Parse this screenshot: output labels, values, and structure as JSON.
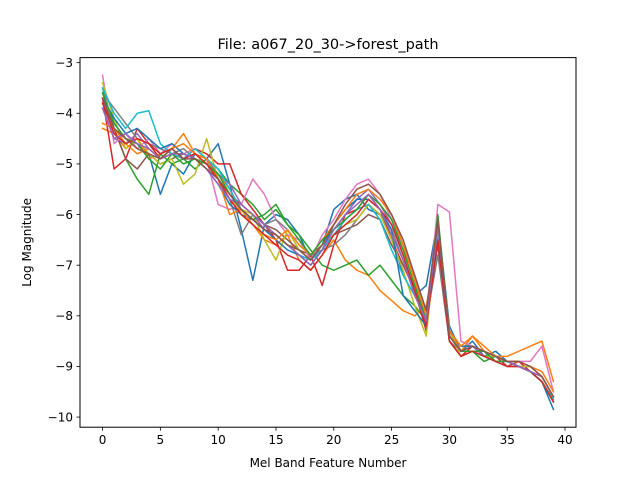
{
  "chart_data": {
    "type": "line",
    "title": "File: a067_20_30->forest_path",
    "xlabel": "Mel Band Feature Number",
    "ylabel": "Log Magnitude",
    "xlim": [
      -1.95,
      40.95
    ],
    "ylim": [
      -10.2,
      -2.9
    ],
    "xticks": [
      0,
      5,
      10,
      15,
      20,
      25,
      30,
      35,
      40
    ],
    "yticks": [
      -10,
      -9,
      -8,
      -7,
      -6,
      -5,
      -4,
      -3
    ],
    "x": [
      0,
      1,
      2,
      3,
      4,
      5,
      6,
      7,
      8,
      9,
      10,
      11,
      12,
      13,
      14,
      15,
      16,
      17,
      18,
      19,
      20,
      21,
      22,
      23,
      24,
      25,
      26,
      27,
      28,
      29,
      30,
      31,
      32,
      33,
      34,
      35,
      36,
      37,
      38,
      39
    ],
    "grid": false,
    "legend": "none",
    "series": [
      {
        "color": "#1f77b4",
        "values": [
          -3.6,
          -4.2,
          -4.5,
          -4.6,
          -4.8,
          -5.6,
          -5.0,
          -5.2,
          -4.8,
          -4.9,
          -4.6,
          -5.4,
          -6.3,
          -7.3,
          -6.2,
          -6.0,
          -6.1,
          -6.4,
          -6.9,
          -6.6,
          -5.9,
          -5.7,
          -5.6,
          -5.9,
          -6.0,
          -6.4,
          -7.2,
          -7.6,
          -7.4,
          -6.1,
          -8.2,
          -8.7,
          -8.5,
          -8.8,
          -8.7,
          -8.9,
          -9.0,
          -9.1,
          -9.3,
          -9.85
        ]
      },
      {
        "color": "#ff7f0e",
        "values": [
          -4.3,
          -4.4,
          -4.7,
          -4.5,
          -4.9,
          -4.8,
          -4.7,
          -4.4,
          -4.8,
          -5.0,
          -5.2,
          -5.5,
          -6.0,
          -6.2,
          -6.5,
          -6.6,
          -6.4,
          -6.9,
          -7.1,
          -6.8,
          -6.5,
          -6.9,
          -7.1,
          -7.2,
          -7.5,
          -7.7,
          -7.9,
          -8.0,
          -7.8,
          -6.6,
          -8.3,
          -8.7,
          -8.4,
          -8.6,
          -8.8,
          -8.8,
          -8.7,
          -8.6,
          -8.5,
          -9.3
        ]
      },
      {
        "color": "#2ca02c",
        "values": [
          -3.5,
          -4.3,
          -4.9,
          -5.3,
          -5.6,
          -4.8,
          -5.0,
          -4.9,
          -5.1,
          -4.9,
          -5.1,
          -5.4,
          -5.6,
          -5.8,
          -6.1,
          -5.9,
          -6.2,
          -6.4,
          -6.7,
          -7.0,
          -7.1,
          -7.0,
          -6.9,
          -7.2,
          -7.0,
          -7.3,
          -7.6,
          -7.8,
          -8.1,
          -6.5,
          -8.5,
          -8.8,
          -8.7,
          -8.9,
          -8.8,
          -8.9,
          -9.0,
          -9.1,
          -9.3,
          -9.7
        ]
      },
      {
        "color": "#d62728",
        "values": [
          -3.7,
          -5.1,
          -4.9,
          -4.3,
          -4.6,
          -4.9,
          -4.8,
          -4.9,
          -4.7,
          -4.8,
          -5.0,
          -5.0,
          -5.6,
          -5.9,
          -6.2,
          -6.5,
          -7.1,
          -7.1,
          -6.8,
          -7.4,
          -6.6,
          -6.0,
          -5.9,
          -5.6,
          -5.9,
          -6.5,
          -7.0,
          -7.5,
          -8.3,
          -6.4,
          -8.5,
          -8.8,
          -8.6,
          -8.8,
          -8.8,
          -9.0,
          -8.9,
          -9.1,
          -9.2,
          -9.6
        ]
      },
      {
        "color": "#9467bd",
        "values": [
          -3.9,
          -4.5,
          -4.6,
          -4.4,
          -4.7,
          -4.9,
          -4.7,
          -4.9,
          -4.8,
          -4.9,
          -5.2,
          -5.4,
          -5.8,
          -6.0,
          -6.3,
          -6.4,
          -6.6,
          -6.8,
          -6.9,
          -6.7,
          -6.3,
          -6.0,
          -5.7,
          -5.5,
          -5.8,
          -6.2,
          -6.7,
          -7.2,
          -7.9,
          -6.3,
          -8.3,
          -8.6,
          -8.6,
          -8.8,
          -8.8,
          -8.9,
          -9.0,
          -9.0,
          -9.2,
          -9.6
        ]
      },
      {
        "color": "#8c564b",
        "values": [
          -3.8,
          -4.3,
          -4.9,
          -5.1,
          -4.8,
          -5.0,
          -4.9,
          -4.8,
          -4.9,
          -5.0,
          -5.3,
          -5.6,
          -5.8,
          -6.0,
          -6.2,
          -6.3,
          -6.5,
          -6.7,
          -6.8,
          -6.6,
          -6.4,
          -6.3,
          -6.2,
          -6.0,
          -6.1,
          -6.6,
          -7.0,
          -7.4,
          -8.0,
          -6.6,
          -8.4,
          -8.7,
          -8.7,
          -8.8,
          -8.9,
          -9.0,
          -9.0,
          -9.1,
          -9.3,
          -9.7
        ]
      },
      {
        "color": "#e377c2",
        "values": [
          -3.25,
          -4.6,
          -4.4,
          -4.7,
          -4.5,
          -4.8,
          -4.6,
          -4.8,
          -4.7,
          -4.9,
          -5.8,
          -5.9,
          -5.8,
          -5.3,
          -5.6,
          -6.1,
          -6.4,
          -6.5,
          -6.9,
          -6.4,
          -6.1,
          -5.7,
          -5.4,
          -5.3,
          -5.6,
          -6.1,
          -6.6,
          -7.2,
          -8.2,
          -5.8,
          -5.95,
          -8.5,
          -8.6,
          -8.7,
          -8.8,
          -8.9,
          -8.9,
          -8.9,
          -8.6,
          -9.5
        ]
      },
      {
        "color": "#7f7f7f",
        "values": [
          -3.6,
          -3.9,
          -4.2,
          -4.5,
          -4.6,
          -4.7,
          -4.8,
          -4.7,
          -4.9,
          -5.0,
          -5.3,
          -5.7,
          -6.4,
          -6.0,
          -6.2,
          -6.1,
          -6.3,
          -6.6,
          -6.8,
          -6.7,
          -6.6,
          -6.4,
          -6.1,
          -5.8,
          -6.0,
          -6.3,
          -6.9,
          -7.5,
          -8.1,
          -6.8,
          -8.5,
          -8.7,
          -8.6,
          -8.7,
          -8.9,
          -8.9,
          -9.0,
          -9.1,
          -9.3,
          -9.7
        ]
      },
      {
        "color": "#bcbd22",
        "values": [
          -3.4,
          -4.1,
          -4.7,
          -4.5,
          -4.8,
          -5.0,
          -4.9,
          -5.4,
          -5.2,
          -4.5,
          -5.3,
          -5.7,
          -5.9,
          -6.0,
          -6.5,
          -6.9,
          -6.3,
          -6.7,
          -6.9,
          -6.6,
          -6.4,
          -6.2,
          -6.1,
          -5.8,
          -6.0,
          -6.5,
          -7.1,
          -7.8,
          -8.4,
          -6.2,
          -8.3,
          -8.8,
          -8.7,
          -8.8,
          -8.8,
          -8.9,
          -9.0,
          -9.0,
          -9.2,
          -9.6
        ]
      },
      {
        "color": "#17becf",
        "values": [
          -3.5,
          -4.0,
          -4.3,
          -4.0,
          -3.95,
          -4.6,
          -4.8,
          -4.9,
          -4.7,
          -4.9,
          -5.1,
          -5.5,
          -5.9,
          -6.1,
          -6.3,
          -6.4,
          -6.6,
          -6.8,
          -6.9,
          -6.7,
          -6.4,
          -6.1,
          -5.9,
          -5.8,
          -6.1,
          -6.7,
          -7.2,
          -7.6,
          -8.0,
          -6.4,
          -8.4,
          -8.7,
          -8.7,
          -8.8,
          -8.9,
          -8.9,
          -9.0,
          -9.1,
          -9.3,
          -9.65
        ]
      },
      {
        "color": "#1f77b4",
        "values": [
          -3.7,
          -4.1,
          -4.4,
          -4.3,
          -4.5,
          -4.7,
          -4.6,
          -4.8,
          -4.9,
          -5.1,
          -5.4,
          -5.8,
          -6.0,
          -6.1,
          -6.3,
          -6.5,
          -6.7,
          -6.8,
          -7.0,
          -6.7,
          -6.2,
          -5.9,
          -5.7,
          -5.7,
          -5.9,
          -6.3,
          -7.6,
          -7.9,
          -8.2,
          -6.1,
          -8.3,
          -8.6,
          -8.6,
          -8.7,
          -8.8,
          -8.9,
          -9.0,
          -9.1,
          -9.3,
          -9.7
        ]
      },
      {
        "color": "#ff7f0e",
        "values": [
          -4.2,
          -4.3,
          -4.6,
          -4.8,
          -4.7,
          -4.9,
          -4.7,
          -4.6,
          -4.8,
          -4.9,
          -5.3,
          -6.0,
          -5.9,
          -6.2,
          -6.4,
          -6.5,
          -6.3,
          -6.6,
          -6.8,
          -6.5,
          -6.2,
          -5.9,
          -5.6,
          -5.5,
          -5.7,
          -6.0,
          -6.6,
          -7.3,
          -8.0,
          -6.2,
          -8.3,
          -8.6,
          -8.4,
          -8.7,
          -8.8,
          -8.9,
          -8.9,
          -9.0,
          -9.1,
          -9.5
        ]
      },
      {
        "color": "#2ca02c",
        "values": [
          -3.6,
          -4.2,
          -4.5,
          -4.6,
          -4.9,
          -5.1,
          -4.8,
          -5.0,
          -4.9,
          -5.0,
          -5.2,
          -5.6,
          -5.9,
          -6.1,
          -6.0,
          -5.8,
          -6.2,
          -6.5,
          -6.8,
          -6.5,
          -6.3,
          -6.1,
          -5.9,
          -5.6,
          -5.8,
          -6.1,
          -6.7,
          -7.4,
          -8.1,
          -6.0,
          -8.4,
          -8.7,
          -8.7,
          -8.7,
          -8.9,
          -8.9,
          -9.0,
          -9.1,
          -9.3,
          -9.7
        ]
      },
      {
        "color": "#d62728",
        "values": [
          -3.8,
          -4.4,
          -4.6,
          -4.5,
          -4.6,
          -4.8,
          -4.7,
          -4.9,
          -4.8,
          -5.0,
          -5.3,
          -5.7,
          -6.0,
          -6.2,
          -6.4,
          -6.6,
          -6.8,
          -6.9,
          -7.1,
          -6.8,
          -6.4,
          -6.2,
          -6.0,
          -5.7,
          -5.9,
          -6.2,
          -6.8,
          -7.5,
          -8.2,
          -6.5,
          -8.5,
          -8.8,
          -8.7,
          -8.8,
          -8.9,
          -9.0,
          -9.0,
          -9.1,
          -9.3,
          -9.7
        ]
      },
      {
        "color": "#9467bd",
        "values": [
          -3.9,
          -4.5,
          -4.4,
          -4.6,
          -4.7,
          -4.9,
          -4.8,
          -4.8,
          -4.9,
          -5.1,
          -5.4,
          -5.7,
          -5.8,
          -6.0,
          -6.2,
          -6.4,
          -6.6,
          -6.8,
          -7.0,
          -6.7,
          -6.3,
          -6.0,
          -5.8,
          -5.6,
          -5.9,
          -6.4,
          -6.9,
          -7.6,
          -8.1,
          -6.2,
          -8.4,
          -8.7,
          -8.6,
          -8.7,
          -8.8,
          -8.9,
          -9.0,
          -9.1,
          -9.2,
          -9.6
        ]
      },
      {
        "color": "#8c564b",
        "values": [
          -3.7,
          -4.3,
          -4.5,
          -4.7,
          -4.8,
          -4.9,
          -4.7,
          -4.9,
          -4.9,
          -5.1,
          -5.3,
          -5.6,
          -5.9,
          -6.1,
          -6.3,
          -6.4,
          -6.6,
          -6.7,
          -6.9,
          -6.6,
          -6.2,
          -5.8,
          -5.5,
          -5.4,
          -5.6,
          -6.0,
          -6.5,
          -7.2,
          -7.9,
          -6.1,
          -8.4,
          -8.7,
          -8.6,
          -8.7,
          -8.8,
          -8.9,
          -8.9,
          -9.0,
          -9.2,
          -9.6
        ]
      }
    ]
  }
}
